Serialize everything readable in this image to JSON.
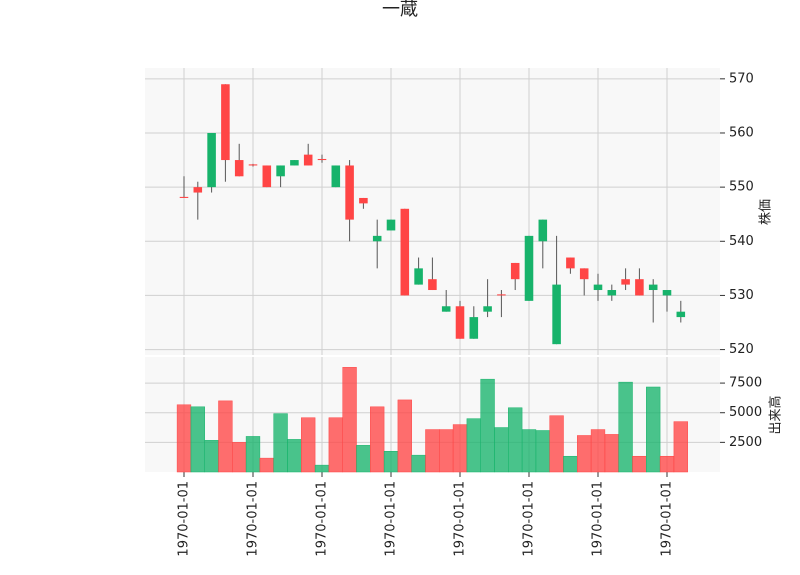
{
  "chart_data": {
    "type": "candlestick",
    "title": "一蔵",
    "ylabel": "株価",
    "volume_ylabel": "出来高",
    "categories": [
      "1970-01-01",
      null,
      null,
      null,
      null,
      "1970-01-01",
      null,
      null,
      null,
      null,
      "1970-01-01",
      null,
      null,
      null,
      null,
      "1970-01-01",
      null,
      null,
      null,
      null,
      "1970-01-01",
      null,
      null,
      null,
      null,
      "1970-01-01",
      null,
      null,
      null,
      null,
      "1970-01-01",
      null,
      null,
      null,
      null,
      "1970-01-01",
      null
    ],
    "open": [
      548.2,
      550,
      550,
      569,
      555,
      554.2,
      554,
      552,
      554,
      556,
      555.2,
      550,
      554,
      548,
      540,
      542,
      546,
      532,
      533,
      527,
      528,
      522,
      527,
      530.2,
      536,
      529,
      540,
      521,
      537,
      535,
      531,
      530,
      533,
      533,
      531,
      530,
      526
    ],
    "high": [
      552,
      551,
      560,
      569,
      558,
      554.3,
      554,
      554,
      555,
      558,
      556,
      554,
      555,
      548,
      544,
      544,
      546,
      537,
      537,
      531,
      529,
      528,
      533,
      531,
      536,
      541,
      544,
      541,
      537,
      535,
      534,
      532,
      535,
      535,
      533,
      531,
      529
    ],
    "low": [
      548,
      544,
      549,
      551,
      552,
      553.8,
      550,
      550,
      554,
      554,
      554.5,
      550,
      540,
      546,
      535,
      542,
      530,
      532,
      531,
      527,
      522,
      522,
      526,
      526,
      531,
      529,
      535,
      521,
      534,
      530,
      529,
      529,
      531,
      530,
      525,
      527,
      525
    ],
    "close": [
      548,
      549,
      560,
      555,
      552,
      554,
      550,
      554,
      555,
      554,
      555,
      554,
      544,
      547,
      541,
      544,
      530,
      535,
      531,
      528,
      522,
      526,
      528,
      530,
      533,
      541,
      544,
      532,
      535,
      533,
      532,
      531,
      532,
      530,
      532,
      531,
      527
    ],
    "volume": [
      5670,
      5500,
      2670,
      6000,
      2500,
      3000,
      1170,
      4920,
      2750,
      4580,
      580,
      4580,
      8830,
      2250,
      5500,
      1750,
      6080,
      1420,
      3580,
      3580,
      4000,
      4500,
      7830,
      3750,
      5420,
      3580,
      3500,
      4750,
      1330,
      3080,
      3580,
      3170,
      7580,
      1330,
      7170,
      1330,
      4250
    ],
    "up_color": "#17b36b",
    "down_color": "#ff4545",
    "ylim": [
      519,
      572
    ],
    "yticks": [
      520,
      530,
      540,
      550,
      560,
      570
    ],
    "volume_ylim": [
      0,
      9700
    ],
    "volume_yticks": [
      2500,
      5000,
      7500
    ],
    "grid": true
  }
}
